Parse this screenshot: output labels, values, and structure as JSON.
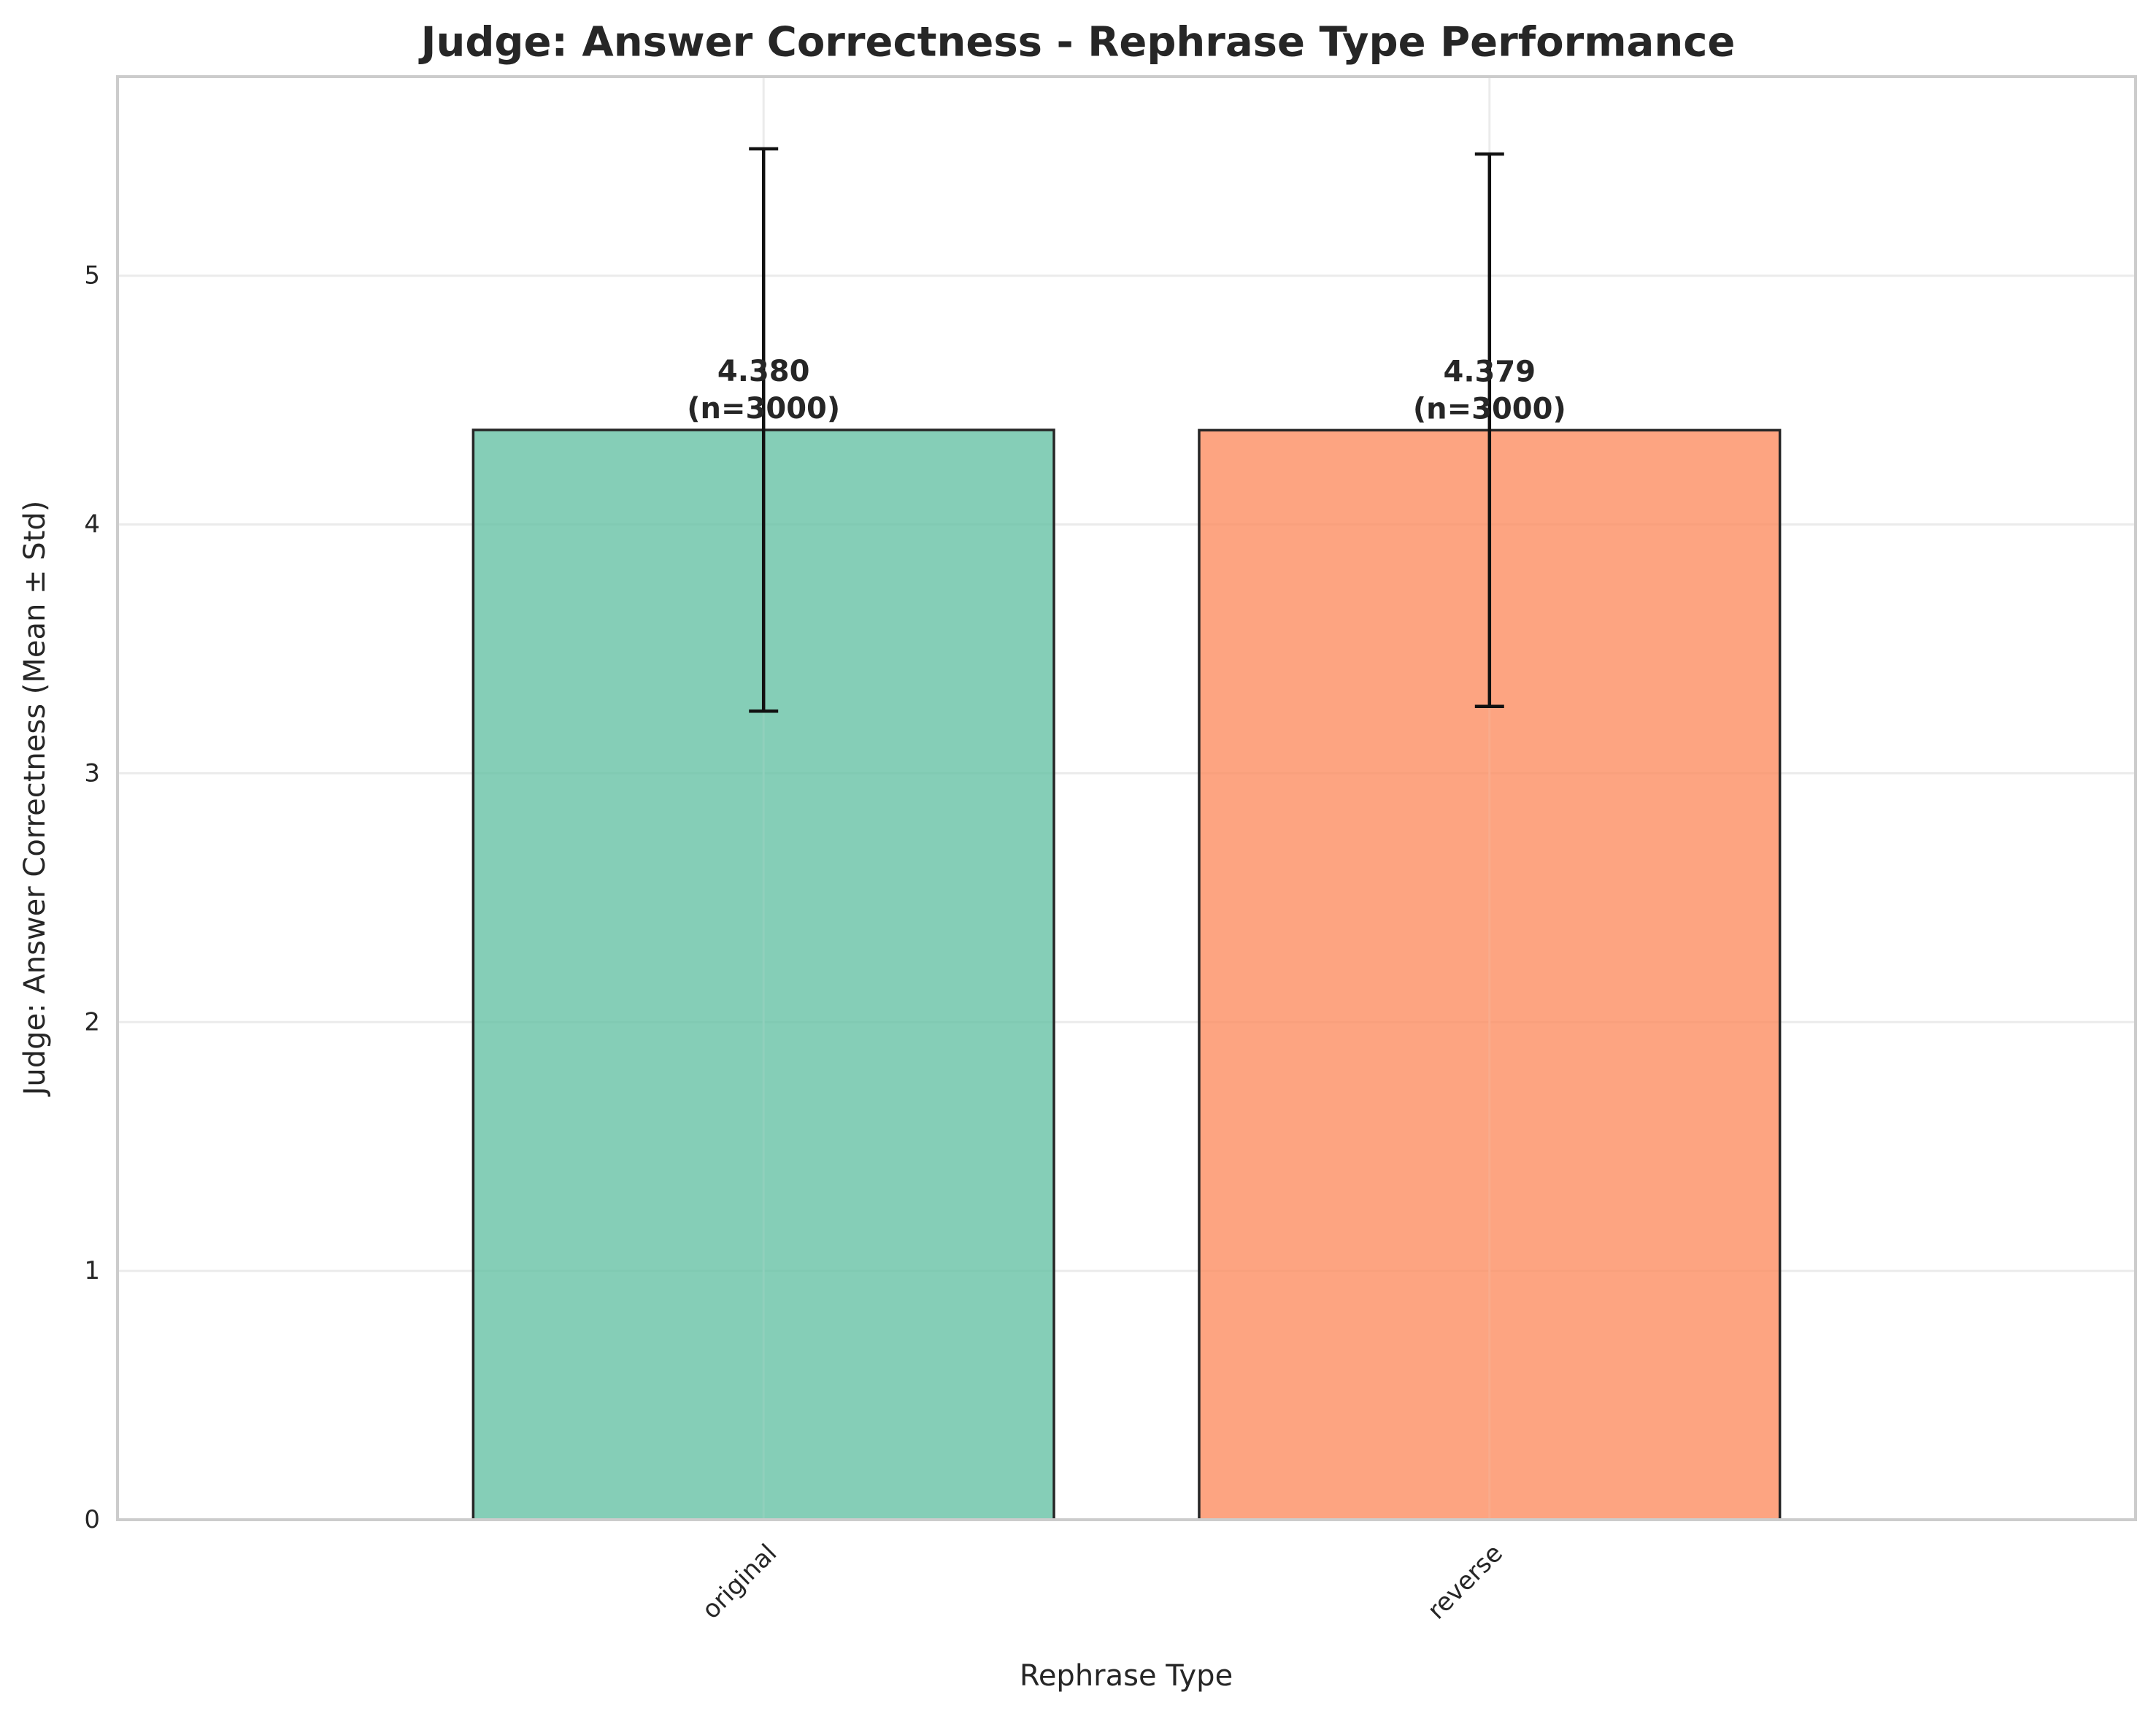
{
  "chart_data": {
    "type": "bar",
    "title": "Judge: Answer Correctness - Rephrase Type Performance",
    "xlabel": "Rephrase Type",
    "ylabel": "Judge: Answer Correctness (Mean ± Std)",
    "categories": [
      "original",
      "reverse"
    ],
    "values": [
      4.38,
      4.379
    ],
    "std": [
      1.13,
      1.11
    ],
    "n": [
      3000,
      3000
    ],
    "value_labels": [
      "4.380",
      "4.379"
    ],
    "n_labels": [
      "(n=3000)",
      "(n=3000)"
    ],
    "colors": [
      "#66c2a5",
      "#fc8d62"
    ],
    "ylim": [
      0,
      5.8
    ],
    "yticks": [
      "0",
      "1",
      "2",
      "3",
      "4",
      "5"
    ],
    "grid": true,
    "legend": "none"
  }
}
